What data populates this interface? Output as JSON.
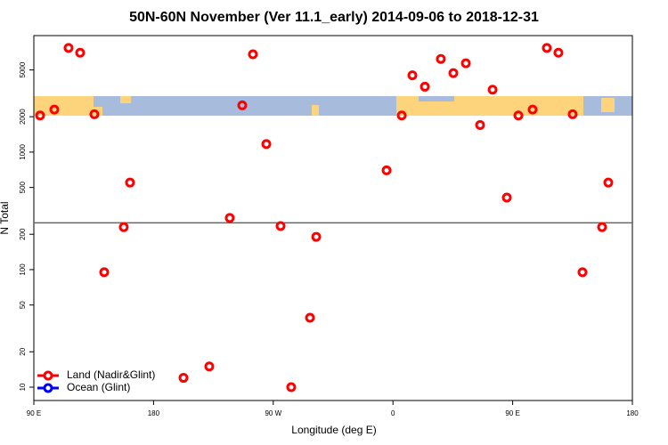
{
  "chart_data": {
    "type": "scatter",
    "title": "50N-60N November (Ver 11.1_early)   2014-09-06 to 2018-12-31",
    "x_label": "Longitude (deg E)",
    "y_label": "N Total",
    "log_y": true,
    "hline": 250,
    "xlim": [
      90,
      540
    ],
    "xticks": [
      {
        "value": 90,
        "label": "90 E"
      },
      180,
      {
        "value": 270,
        "label": "90 W"
      },
      {
        "value": 360,
        "label": "0"
      },
      {
        "value": 450,
        "label": "90 E"
      },
      {
        "value": 540,
        "label": "180"
      }
    ],
    "ylim": [
      7.7,
      9800
    ],
    "yticks": [
      10,
      20,
      50,
      100,
      200,
      500,
      1000,
      2000,
      5000
    ],
    "legend": "bottom-left",
    "series": [
      {
        "name": "Land (Nadir&Glint)",
        "color": "#ff0000",
        "x": [
          94.7,
          105.4,
          116.1,
          124.8,
          135.5,
          142.9,
          157.6,
          162.3,
          202.5,
          221.9,
          237.3,
          246.7,
          254.7,
          264.8,
          275.5,
          283.5,
          297.6,
          302.3,
          355.2,
          366.6,
          374.6,
          384,
          396,
          405.4,
          414.8,
          425.5,
          434.9,
          445.6,
          454.3,
          465,
          475.7,
          484.4,
          495.1,
          502.5,
          517.2,
          521.9
        ],
        "values": [
          2050,
          2300,
          7700,
          7000,
          2100,
          95,
          230,
          550,
          12,
          15,
          275,
          2500,
          6800,
          1170,
          235,
          10,
          39,
          190,
          700,
          2050,
          4500,
          3600,
          6200,
          4700,
          5700,
          1700,
          3400,
          410,
          2050,
          2300,
          7700,
          7000,
          2100,
          95,
          230,
          550
        ]
      },
      {
        "name": "Ocean (Glint)",
        "color": "#0000ff",
        "x": [],
        "values": []
      }
    ]
  }
}
